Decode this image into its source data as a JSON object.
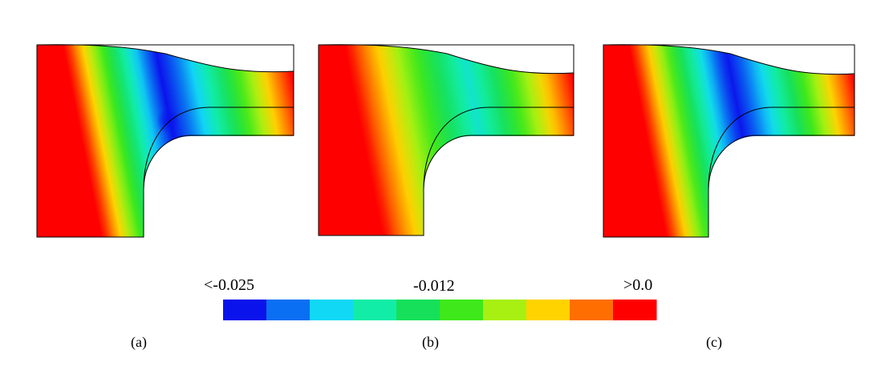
{
  "panels": [
    {
      "label": "(a)",
      "min_position": 0.5,
      "min_strength": 1.0,
      "hotspot": true
    },
    {
      "label": "(b)",
      "min_position": 0.6,
      "min_strength": 0.72,
      "hotspot": false
    },
    {
      "label": "(c)",
      "min_position": 0.52,
      "min_strength": 1.0,
      "hotspot": false
    }
  ],
  "colorbar": {
    "min_label": "<-0.025",
    "mid_label": "-0.012",
    "max_label": ">0.0",
    "colors": [
      "#0b13ec",
      "#0a6ff2",
      "#11d8f5",
      "#11eda6",
      "#16e05a",
      "#3ee81b",
      "#a8f012",
      "#ffd300",
      "#ff6e00",
      "#ff0000"
    ]
  }
}
